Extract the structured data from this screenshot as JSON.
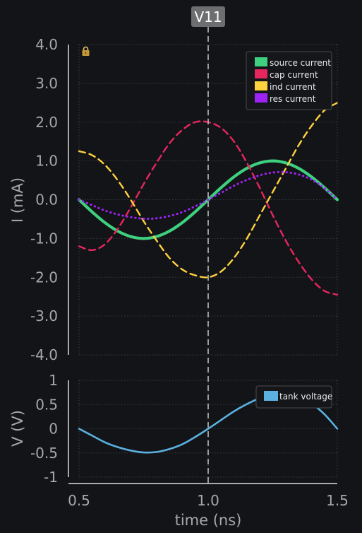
{
  "chart_data": [
    {
      "type": "line",
      "ylabel": "I (mA)",
      "ylim": [
        -4.0,
        4.0
      ],
      "yticks": [
        "4.0",
        "3.0",
        "2.0",
        "1.0",
        "0.0",
        "-1.0",
        "-2.0",
        "-3.0",
        "-4.0"
      ],
      "xlim": [
        0.5,
        1.5
      ],
      "grid": true,
      "legend_position": "top-right",
      "series": [
        {
          "name": "source current",
          "color": "#3ecf7f",
          "style": "solid",
          "x": [
            0.5,
            0.55,
            0.6,
            0.65,
            0.7,
            0.75,
            0.8,
            0.85,
            0.9,
            0.95,
            1.0,
            1.05,
            1.1,
            1.15,
            1.2,
            1.25,
            1.3,
            1.35,
            1.4,
            1.45,
            1.5
          ],
          "y": [
            0.0,
            -0.31,
            -0.59,
            -0.81,
            -0.95,
            -1.0,
            -0.95,
            -0.81,
            -0.59,
            -0.31,
            0.0,
            0.31,
            0.59,
            0.81,
            0.95,
            1.0,
            0.95,
            0.81,
            0.59,
            0.31,
            0.0
          ]
        },
        {
          "name": "cap current",
          "color": "#e8265e",
          "style": "dashed",
          "x": [
            0.5,
            0.55,
            0.6,
            0.65,
            0.7,
            0.75,
            0.8,
            0.85,
            0.9,
            0.95,
            1.0,
            1.05,
            1.1,
            1.15,
            1.2,
            1.25,
            1.3,
            1.35,
            1.4,
            1.45,
            1.5
          ],
          "y": [
            -1.2,
            -1.3,
            -1.15,
            -0.75,
            -0.2,
            0.4,
            0.95,
            1.45,
            1.8,
            2.0,
            2.0,
            1.85,
            1.5,
            0.95,
            0.3,
            -0.4,
            -1.05,
            -1.6,
            -2.05,
            -2.35,
            -2.45
          ]
        },
        {
          "name": "ind current",
          "color": "#ffd23f",
          "style": "dashed",
          "x": [
            0.5,
            0.55,
            0.6,
            0.65,
            0.7,
            0.75,
            0.8,
            0.85,
            0.9,
            0.95,
            1.0,
            1.05,
            1.1,
            1.15,
            1.2,
            1.25,
            1.3,
            1.35,
            1.4,
            1.45,
            1.5
          ],
          "y": [
            1.25,
            1.15,
            0.9,
            0.5,
            0.0,
            -0.55,
            -1.05,
            -1.5,
            -1.8,
            -1.95,
            -2.0,
            -1.85,
            -1.5,
            -1.0,
            -0.4,
            0.2,
            0.8,
            1.4,
            1.9,
            2.3,
            2.5
          ]
        },
        {
          "name": "res current",
          "color": "#9d23f5",
          "style": "dotted",
          "x": [
            0.5,
            0.55,
            0.6,
            0.65,
            0.7,
            0.75,
            0.8,
            0.85,
            0.9,
            0.95,
            1.0,
            1.05,
            1.1,
            1.15,
            1.2,
            1.25,
            1.3,
            1.35,
            1.4,
            1.45,
            1.5
          ],
          "y": [
            0.0,
            -0.14,
            -0.28,
            -0.38,
            -0.45,
            -0.49,
            -0.48,
            -0.42,
            -0.32,
            -0.17,
            0.0,
            0.18,
            0.36,
            0.51,
            0.63,
            0.7,
            0.71,
            0.65,
            0.52,
            0.3,
            0.0
          ]
        }
      ]
    },
    {
      "type": "line",
      "xlabel": "time (ns)",
      "ylabel": "V (V)",
      "ylim": [
        -1,
        1
      ],
      "yticks": [
        "1",
        "0.5",
        "0",
        "-0.5",
        "-1"
      ],
      "xlim": [
        0.5,
        1.5
      ],
      "xticks": [
        "0.5",
        "1.0",
        "1.5"
      ],
      "grid": true,
      "legend_position": "top-right",
      "series": [
        {
          "name": "tank voltage",
          "color": "#5ab0e0",
          "style": "solid",
          "x": [
            0.5,
            0.55,
            0.6,
            0.65,
            0.7,
            0.75,
            0.8,
            0.85,
            0.9,
            0.95,
            1.0,
            1.05,
            1.1,
            1.15,
            1.2,
            1.25,
            1.3,
            1.35,
            1.4,
            1.45,
            1.5
          ],
          "y": [
            0.0,
            -0.14,
            -0.28,
            -0.38,
            -0.45,
            -0.49,
            -0.48,
            -0.42,
            -0.32,
            -0.17,
            0.0,
            0.18,
            0.36,
            0.51,
            0.63,
            0.7,
            0.71,
            0.65,
            0.52,
            0.3,
            0.0
          ]
        }
      ]
    }
  ],
  "cursor": {
    "label": "V11",
    "x": 1.0
  },
  "icons": {
    "lock": "lock-icon"
  }
}
